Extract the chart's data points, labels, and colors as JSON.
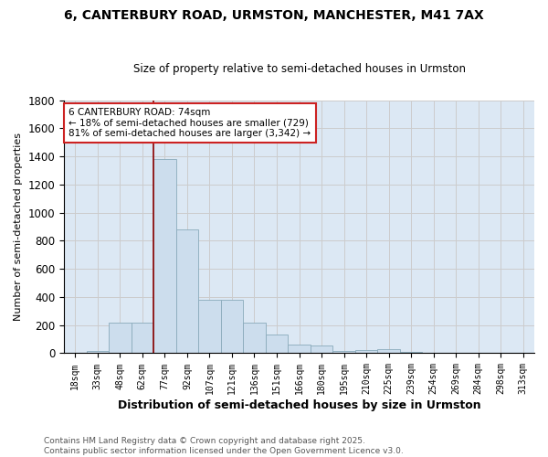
{
  "title1": "6, CANTERBURY ROAD, URMSTON, MANCHESTER, M41 7AX",
  "title2": "Size of property relative to semi-detached houses in Urmston",
  "xlabel": "Distribution of semi-detached houses by size in Urmston",
  "ylabel": "Number of semi-detached properties",
  "bin_labels": [
    "18sqm",
    "33sqm",
    "48sqm",
    "62sqm",
    "77sqm",
    "92sqm",
    "107sqm",
    "121sqm",
    "136sqm",
    "151sqm",
    "166sqm",
    "180sqm",
    "195sqm",
    "210sqm",
    "225sqm",
    "239sqm",
    "254sqm",
    "269sqm",
    "284sqm",
    "298sqm",
    "313sqm"
  ],
  "bar_heights": [
    5,
    15,
    220,
    220,
    1380,
    880,
    380,
    380,
    220,
    130,
    60,
    55,
    15,
    20,
    30,
    10,
    5,
    5,
    5,
    3,
    2
  ],
  "bar_color": "#ccdded",
  "bar_edge_color": "#8aaabb",
  "vline_color": "#8b0000",
  "vline_pos": 3.5,
  "annotation_box_text": "6 CANTERBURY ROAD: 74sqm\n← 18% of semi-detached houses are smaller (729)\n81% of semi-detached houses are larger (3,342) →",
  "ylim": [
    0,
    1800
  ],
  "yticks": [
    0,
    200,
    400,
    600,
    800,
    1000,
    1200,
    1400,
    1600,
    1800
  ],
  "grid_color": "#cccccc",
  "bg_color": "#dce8f4",
  "fig_bg_color": "#ffffff",
  "title1_fontsize": 10,
  "title2_fontsize": 8.5,
  "xlabel_fontsize": 9,
  "ylabel_fontsize": 8,
  "footer": "Contains HM Land Registry data © Crown copyright and database right 2025.\nContains public sector information licensed under the Open Government Licence v3.0.",
  "footer_fontsize": 6.5,
  "footer_color": "#555555"
}
